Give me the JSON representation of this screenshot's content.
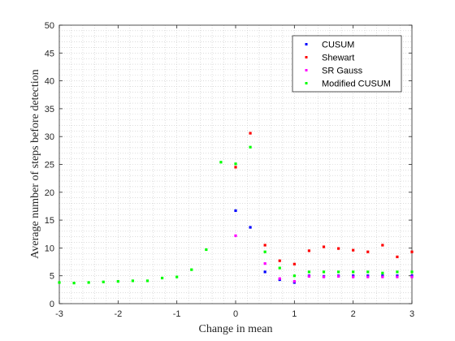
{
  "chart_data": {
    "type": "scatter",
    "title": "",
    "xlabel": "Change in mean",
    "ylabel": "Average number of steps before detection",
    "xlim": [
      -3,
      3
    ],
    "ylim": [
      0,
      50
    ],
    "xticks": [
      -3,
      -2,
      -1,
      0,
      1,
      2,
      3
    ],
    "yticks": [
      0,
      5,
      10,
      15,
      20,
      25,
      30,
      35,
      40,
      45,
      50
    ],
    "grid": "minor-dotted",
    "legend_position": "top-right",
    "series": [
      {
        "name": "CUSUM",
        "color": "#0000ff",
        "x": [
          0,
          0.25,
          0.5,
          0.75,
          1,
          1.25,
          1.5,
          1.75,
          2,
          2.25,
          2.5,
          2.75,
          3
        ],
        "y": [
          16.7,
          13.7,
          5.7,
          4.3,
          3.8,
          5.0,
          4.9,
          5.0,
          5.0,
          5.0,
          5.0,
          5.0,
          5.0
        ]
      },
      {
        "name": "Shewart",
        "color": "#ff0000",
        "x": [
          0,
          0.25,
          0.5,
          0.75,
          1,
          1.25,
          1.5,
          1.75,
          2,
          2.25,
          2.5,
          2.75,
          3
        ],
        "y": [
          24.5,
          30.6,
          10.5,
          7.7,
          7.1,
          9.5,
          10.2,
          9.9,
          9.6,
          9.3,
          10.5,
          8.4,
          9.3
        ]
      },
      {
        "name": "SR Gauss",
        "color": "#ff00ff",
        "x": [
          0,
          0.5,
          0.75,
          1,
          1.25,
          1.5,
          1.75,
          2,
          2.25,
          2.5,
          2.75,
          3
        ],
        "y": [
          12.2,
          7.2,
          4.5,
          4.0,
          4.9,
          4.8,
          4.9,
          4.8,
          4.8,
          4.8,
          4.8,
          4.8
        ]
      },
      {
        "name": "Modified CUSUM",
        "color": "#00ff00",
        "x": [
          -3,
          -2.75,
          -2.5,
          -2.25,
          -2,
          -1.75,
          -1.5,
          -1.25,
          -1,
          -0.75,
          -0.5,
          -0.25,
          0,
          0.25,
          0.5,
          0.75,
          1,
          1.25,
          1.5,
          1.75,
          2,
          2.25,
          2.5,
          2.75,
          3
        ],
        "y": [
          3.8,
          3.7,
          3.8,
          3.9,
          4.0,
          4.1,
          4.1,
          4.6,
          4.8,
          6.1,
          9.7,
          25.4,
          25.1,
          28.1,
          9.3,
          6.4,
          5.0,
          5.7,
          5.7,
          5.7,
          5.7,
          5.7,
          5.5,
          5.7,
          5.7
        ]
      }
    ]
  }
}
